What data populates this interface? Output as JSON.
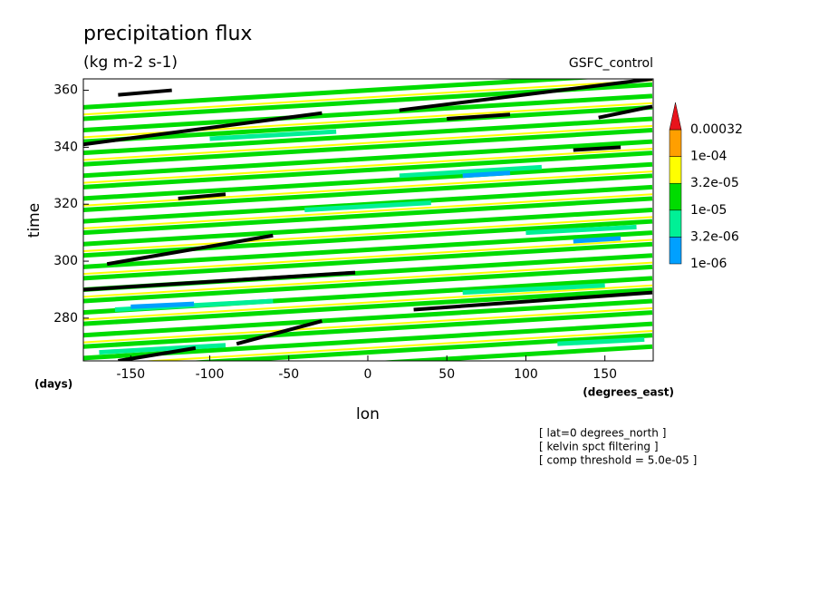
{
  "chart_data": {
    "type": "contour",
    "title": "precipitation flux",
    "subtitle": "(kg m-2 s-1)",
    "run_label": "GSFC_control",
    "xlabel": "lon",
    "ylabel": "time",
    "x_unit": "(degrees_east)",
    "y_unit": "(days)",
    "xlim": [
      -180,
      180
    ],
    "ylim": [
      265,
      364
    ],
    "xticks": [
      -150,
      -100,
      -50,
      0,
      50,
      100,
      150
    ],
    "yticks": [
      280,
      300,
      320,
      340,
      360
    ],
    "colorbar": {
      "levels": [
        {
          "value": 1e-06,
          "label": "1e-06"
        },
        {
          "value": 3.2e-06,
          "label": "3.2e-06"
        },
        {
          "value": 1e-05,
          "label": "1e-05"
        },
        {
          "value": 3.2e-05,
          "label": "3.2e-05"
        },
        {
          "value": 0.0001,
          "label": "1e-04"
        },
        0.00032
      ],
      "colors": [
        "#00a0ff",
        "#00f096",
        "#00dc00",
        "#ffff00",
        "#ff9f00",
        "#e8141c"
      ]
    },
    "streaks": [
      {
        "color": "#00dc00",
        "x": [
          -180,
          180
        ],
        "y": [
          258,
          270
        ]
      },
      {
        "color": "#00dc00",
        "x": [
          -180,
          180
        ],
        "y": [
          262,
          274
        ]
      },
      {
        "color": "#00dc00",
        "x": [
          -180,
          180
        ],
        "y": [
          266,
          278
        ]
      },
      {
        "color": "#00dc00",
        "x": [
          -180,
          180
        ],
        "y": [
          270,
          282
        ]
      },
      {
        "color": "#00dc00",
        "x": [
          -180,
          180
        ],
        "y": [
          274,
          286
        ]
      },
      {
        "color": "#00dc00",
        "x": [
          -180,
          180
        ],
        "y": [
          278,
          290
        ]
      },
      {
        "color": "#00dc00",
        "x": [
          -180,
          180
        ],
        "y": [
          282,
          294
        ]
      },
      {
        "color": "#00dc00",
        "x": [
          -180,
          180
        ],
        "y": [
          286,
          298
        ]
      },
      {
        "color": "#00dc00",
        "x": [
          -180,
          180
        ],
        "y": [
          290,
          302
        ]
      },
      {
        "color": "#00dc00",
        "x": [
          -180,
          180
        ],
        "y": [
          294,
          306
        ]
      },
      {
        "color": "#00dc00",
        "x": [
          -180,
          180
        ],
        "y": [
          298,
          310
        ]
      },
      {
        "color": "#00dc00",
        "x": [
          -180,
          180
        ],
        "y": [
          302,
          314
        ]
      },
      {
        "color": "#00dc00",
        "x": [
          -180,
          180
        ],
        "y": [
          306,
          318
        ]
      },
      {
        "color": "#00dc00",
        "x": [
          -180,
          180
        ],
        "y": [
          310,
          322
        ]
      },
      {
        "color": "#00dc00",
        "x": [
          -180,
          180
        ],
        "y": [
          314,
          326
        ]
      },
      {
        "color": "#00dc00",
        "x": [
          -180,
          180
        ],
        "y": [
          318,
          330
        ]
      },
      {
        "color": "#00dc00",
        "x": [
          -180,
          180
        ],
        "y": [
          322,
          334
        ]
      },
      {
        "color": "#00dc00",
        "x": [
          -180,
          180
        ],
        "y": [
          326,
          338
        ]
      },
      {
        "color": "#00dc00",
        "x": [
          -180,
          180
        ],
        "y": [
          330,
          342
        ]
      },
      {
        "color": "#00dc00",
        "x": [
          -180,
          180
        ],
        "y": [
          334,
          346
        ]
      },
      {
        "color": "#00dc00",
        "x": [
          -180,
          180
        ],
        "y": [
          338,
          350
        ]
      },
      {
        "color": "#00dc00",
        "x": [
          -180,
          180
        ],
        "y": [
          342,
          354
        ]
      },
      {
        "color": "#00dc00",
        "x": [
          -180,
          180
        ],
        "y": [
          346,
          358
        ]
      },
      {
        "color": "#00dc00",
        "x": [
          -180,
          180
        ],
        "y": [
          350,
          362
        ]
      },
      {
        "color": "#00dc00",
        "x": [
          -180,
          180
        ],
        "y": [
          354,
          366
        ]
      },
      {
        "color": "#ffff00",
        "x": [
          -180,
          180
        ],
        "y": [
          263.5,
          275.5
        ]
      },
      {
        "color": "#ffff00",
        "x": [
          -180,
          180
        ],
        "y": [
          271.5,
          283.5
        ]
      },
      {
        "color": "#ffff00",
        "x": [
          -180,
          180
        ],
        "y": [
          279.5,
          291.5
        ]
      },
      {
        "color": "#ffff00",
        "x": [
          -180,
          180
        ],
        "y": [
          287.5,
          299.5
        ]
      },
      {
        "color": "#ffff00",
        "x": [
          -180,
          180
        ],
        "y": [
          295.5,
          307.5
        ]
      },
      {
        "color": "#ffff00",
        "x": [
          -180,
          180
        ],
        "y": [
          303.5,
          315.5
        ]
      },
      {
        "color": "#ffff00",
        "x": [
          -180,
          180
        ],
        "y": [
          311.5,
          323.5
        ]
      },
      {
        "color": "#ffff00",
        "x": [
          -180,
          180
        ],
        "y": [
          319.5,
          331.5
        ]
      },
      {
        "color": "#ffff00",
        "x": [
          -180,
          180
        ],
        "y": [
          327.5,
          339.5
        ]
      },
      {
        "color": "#ffff00",
        "x": [
          -180,
          180
        ],
        "y": [
          335.5,
          347.5
        ]
      },
      {
        "color": "#ffff00",
        "x": [
          -180,
          180
        ],
        "y": [
          343.5,
          355.5
        ]
      },
      {
        "color": "#ffff00",
        "x": [
          -180,
          180
        ],
        "y": [
          351.5,
          363.5
        ]
      },
      {
        "color": "#00f096",
        "x": [
          -160,
          -60
        ],
        "y": [
          283,
          286
        ]
      },
      {
        "color": "#00f096",
        "x": [
          20,
          110
        ],
        "y": [
          330,
          333
        ]
      },
      {
        "color": "#00f096",
        "x": [
          60,
          150
        ],
        "y": [
          289,
          291.5
        ]
      },
      {
        "color": "#00f096",
        "x": [
          -100,
          -20
        ],
        "y": [
          343,
          345.5
        ]
      },
      {
        "color": "#00f096",
        "x": [
          100,
          170
        ],
        "y": [
          310,
          312
        ]
      },
      {
        "color": "#00f096",
        "x": [
          -170,
          -90
        ],
        "y": [
          268,
          270.5
        ]
      },
      {
        "color": "#00f096",
        "x": [
          -40,
          40
        ],
        "y": [
          318,
          320.5
        ]
      },
      {
        "color": "#00f096",
        "x": [
          120,
          175
        ],
        "y": [
          271,
          272.5
        ]
      },
      {
        "color": "#00a0ff",
        "x": [
          -150,
          -110
        ],
        "y": [
          284,
          285
        ]
      },
      {
        "color": "#00a0ff",
        "x": [
          60,
          90
        ],
        "y": [
          330,
          331
        ]
      },
      {
        "color": "#00a0ff",
        "x": [
          130,
          160
        ],
        "y": [
          307,
          308
        ]
      },
      {
        "color": "#000000",
        "x": [
          -180,
          -29
        ],
        "y": [
          341,
          352
        ]
      },
      {
        "color": "#000000",
        "x": [
          20,
          180
        ],
        "y": [
          353,
          364
        ]
      },
      {
        "color": "#000000",
        "x": [
          -180,
          -8
        ],
        "y": [
          290,
          296
        ]
      },
      {
        "color": "#000000",
        "x": [
          -165,
          -60
        ],
        "y": [
          299,
          309
        ]
      },
      {
        "color": "#000000",
        "x": [
          29,
          180
        ],
        "y": [
          283,
          289
        ]
      },
      {
        "color": "#000000",
        "x": [
          -83,
          -29
        ],
        "y": [
          271,
          279
        ]
      },
      {
        "color": "#000000",
        "x": [
          -158,
          -109
        ],
        "y": [
          265,
          269.5
        ]
      },
      {
        "color": "#000000",
        "x": [
          146,
          180
        ],
        "y": [
          350.4,
          354.3
        ]
      },
      {
        "color": "#000000",
        "x": [
          -158,
          -124
        ],
        "y": [
          358.4,
          360
        ]
      },
      {
        "color": "#000000",
        "x": [
          -120,
          -90
        ],
        "y": [
          322,
          323.5
        ]
      },
      {
        "color": "#000000",
        "x": [
          50,
          90
        ],
        "y": [
          350,
          351.5
        ]
      },
      {
        "color": "#000000",
        "x": [
          130,
          160
        ],
        "y": [
          339,
          340
        ]
      }
    ],
    "annotations": [
      "[ lat=0 degrees_north ]",
      "[ kelvin spct filtering ]",
      "[ comp threshold = 5.0e-05 ]"
    ]
  }
}
